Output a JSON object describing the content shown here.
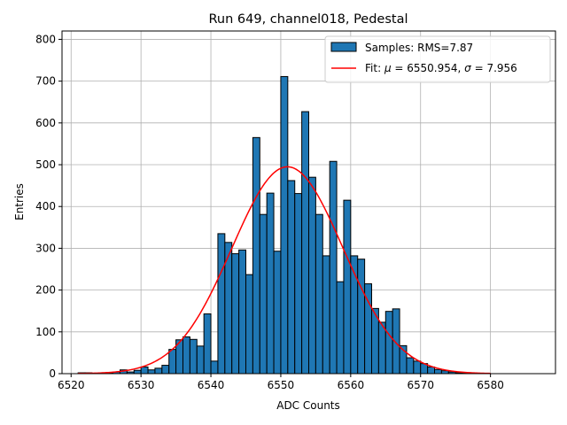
{
  "chart_data": {
    "type": "bar",
    "title": "Run 649, channel018, Pedestal",
    "xlabel": "ADC Counts",
    "ylabel": "Entries",
    "xlim": [
      6518.7,
      6589.3
    ],
    "ylim": [
      0,
      820
    ],
    "xticks": [
      6520,
      6530,
      6540,
      6550,
      6560,
      6570,
      6580
    ],
    "yticks": [
      0,
      100,
      200,
      300,
      400,
      500,
      600,
      700,
      800
    ],
    "grid": true,
    "legend_placement": "top-right",
    "histogram": {
      "name": "Samples: RMS=7.87",
      "color": "#1f77b4",
      "bin_start": 6521,
      "bin_width": 1,
      "counts": [
        2,
        2,
        1,
        1,
        2,
        4,
        9,
        4,
        8,
        16,
        9,
        13,
        20,
        58,
        81,
        88,
        82,
        66,
        143,
        30,
        335,
        314,
        287,
        296,
        237,
        565,
        381,
        432,
        293,
        711,
        462,
        431,
        627,
        470,
        381,
        282,
        508,
        220,
        415,
        282,
        274,
        215,
        156,
        123,
        149,
        155,
        67,
        38,
        30,
        24,
        16,
        10,
        7,
        4,
        2,
        1
      ]
    },
    "fit": {
      "name": "Fit: μ = 6550.954, σ = 7.956",
      "name_parts": [
        "Fit: ",
        "μ",
        " = 6550.954, ",
        "σ",
        " = 7.956"
      ],
      "color": "#ff0000",
      "mu": 6550.954,
      "sigma": 7.956,
      "amplitude": 495,
      "x_range": [
        6521,
        6580
      ]
    }
  }
}
